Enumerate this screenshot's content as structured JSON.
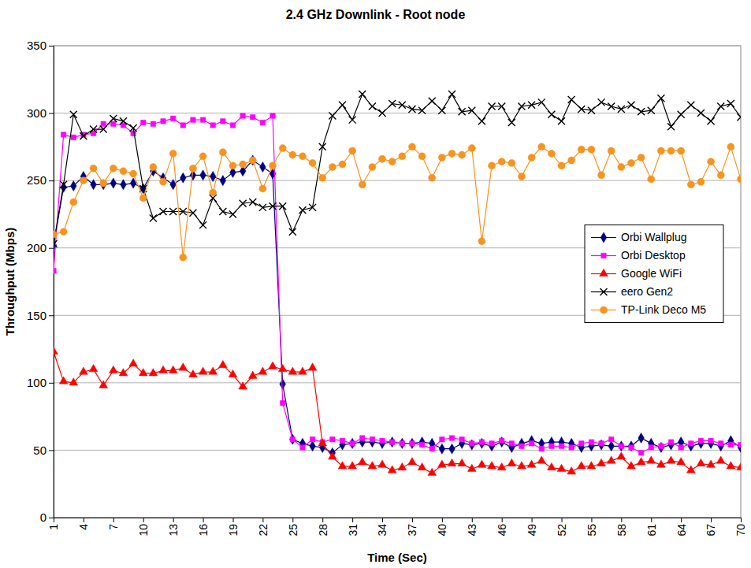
{
  "chart_data": {
    "type": "line",
    "title": "2.4 GHz Downlink - Root node",
    "x_label": "Time (Sec)",
    "y_label": "Throughput (Mbps)",
    "x": [
      1,
      2,
      3,
      4,
      5,
      6,
      7,
      8,
      9,
      10,
      11,
      12,
      13,
      14,
      15,
      16,
      17,
      18,
      19,
      20,
      21,
      22,
      23,
      24,
      25,
      26,
      27,
      28,
      29,
      30,
      31,
      32,
      33,
      34,
      35,
      36,
      37,
      38,
      39,
      40,
      41,
      42,
      43,
      44,
      45,
      46,
      47,
      48,
      49,
      50,
      51,
      52,
      53,
      54,
      55,
      56,
      57,
      58,
      59,
      60,
      61,
      62,
      63,
      64,
      65,
      66,
      67,
      68,
      69,
      70
    ],
    "xlim": [
      1,
      70
    ],
    "xticks": [
      1,
      4,
      7,
      10,
      13,
      16,
      19,
      22,
      25,
      28,
      31,
      34,
      37,
      40,
      43,
      46,
      49,
      52,
      55,
      58,
      61,
      64,
      67,
      70
    ],
    "ylim": [
      0,
      350
    ],
    "yticks": [
      0,
      50,
      100,
      150,
      200,
      250,
      300,
      350
    ],
    "grid": true,
    "legend": "right",
    "series": [
      {
        "name": "Orbi Wallplug",
        "color": "#000080",
        "marker": "diamond",
        "values": [
          202,
          245,
          246,
          253,
          247,
          247,
          248,
          247,
          248,
          244,
          257,
          252,
          247,
          252,
          254,
          254,
          253,
          250,
          256,
          257,
          265,
          260,
          255,
          99,
          58,
          55,
          53,
          52,
          48,
          54,
          55,
          56,
          56,
          55,
          56,
          55,
          55,
          56,
          55,
          51,
          51,
          55,
          54,
          55,
          53,
          56,
          52,
          55,
          57,
          55,
          56,
          56,
          55,
          52,
          53,
          54,
          53,
          53,
          53,
          59,
          55,
          52,
          54,
          56,
          53,
          55,
          55,
          53,
          57,
          52
        ]
      },
      {
        "name": "Orbi Desktop",
        "color": "#FF00FF",
        "marker": "square",
        "values": [
          183,
          284,
          282,
          284,
          285,
          292,
          292,
          291,
          285,
          293,
          292,
          294,
          296,
          291,
          295,
          295,
          291,
          294,
          291,
          298,
          297,
          293,
          298,
          85,
          58,
          52,
          58,
          56,
          58,
          57,
          55,
          59,
          58,
          57,
          56,
          55,
          55,
          54,
          51,
          58,
          59,
          58,
          55,
          56,
          55,
          57,
          55,
          53,
          55,
          51,
          53,
          53,
          52,
          55,
          56,
          55,
          58,
          53,
          52,
          48,
          52,
          53,
          56,
          52,
          55,
          57,
          57,
          55,
          54,
          54
        ]
      },
      {
        "name": "Google WiFi",
        "color": "#FF0000",
        "marker": "triangle",
        "values": [
          123,
          101,
          100,
          108,
          110,
          98,
          109,
          107,
          114,
          107,
          107,
          109,
          109,
          111,
          106,
          108,
          108,
          113,
          106,
          97,
          105,
          108,
          112,
          110,
          108,
          108,
          111,
          55,
          45,
          38,
          38,
          41,
          38,
          39,
          35,
          37,
          41,
          37,
          33,
          39,
          40,
          40,
          36,
          39,
          38,
          37,
          40,
          38,
          39,
          42,
          37,
          36,
          34,
          38,
          38,
          40,
          42,
          45,
          38,
          41,
          42,
          39,
          42,
          41,
          35,
          40,
          39,
          42,
          38,
          37
        ]
      },
      {
        "name": "eero Gen2",
        "color": "#000000",
        "marker": "x",
        "values": [
          203,
          247,
          299,
          283,
          288,
          288,
          296,
          294,
          289,
          244,
          222,
          227,
          227,
          227,
          226,
          217,
          237,
          227,
          225,
          233,
          234,
          230,
          231,
          231,
          212,
          228,
          230,
          275,
          298,
          306,
          295,
          314,
          305,
          300,
          307,
          306,
          303,
          302,
          309,
          302,
          314,
          301,
          302,
          294,
          305,
          305,
          293,
          305,
          306,
          308,
          299,
          294,
          310,
          303,
          302,
          308,
          305,
          303,
          306,
          301,
          302,
          311,
          290,
          299,
          306,
          300,
          294,
          305,
          307,
          297
        ]
      },
      {
        "name": "TP-Link Deco M5",
        "color": "#F7931E",
        "marker": "circle",
        "values": [
          210,
          212,
          234,
          250,
          259,
          248,
          259,
          257,
          255,
          237,
          260,
          249,
          270,
          193,
          259,
          268,
          241,
          271,
          261,
          262,
          265,
          244,
          261,
          274,
          269,
          268,
          263,
          252,
          260,
          262,
          272,
          247,
          260,
          266,
          264,
          268,
          275,
          268,
          252,
          267,
          270,
          269,
          274,
          205,
          261,
          264,
          263,
          253,
          267,
          275,
          270,
          261,
          265,
          273,
          273,
          254,
          272,
          260,
          263,
          267,
          251,
          272,
          272,
          272,
          247,
          249,
          264,
          254,
          275,
          251
        ]
      }
    ]
  }
}
